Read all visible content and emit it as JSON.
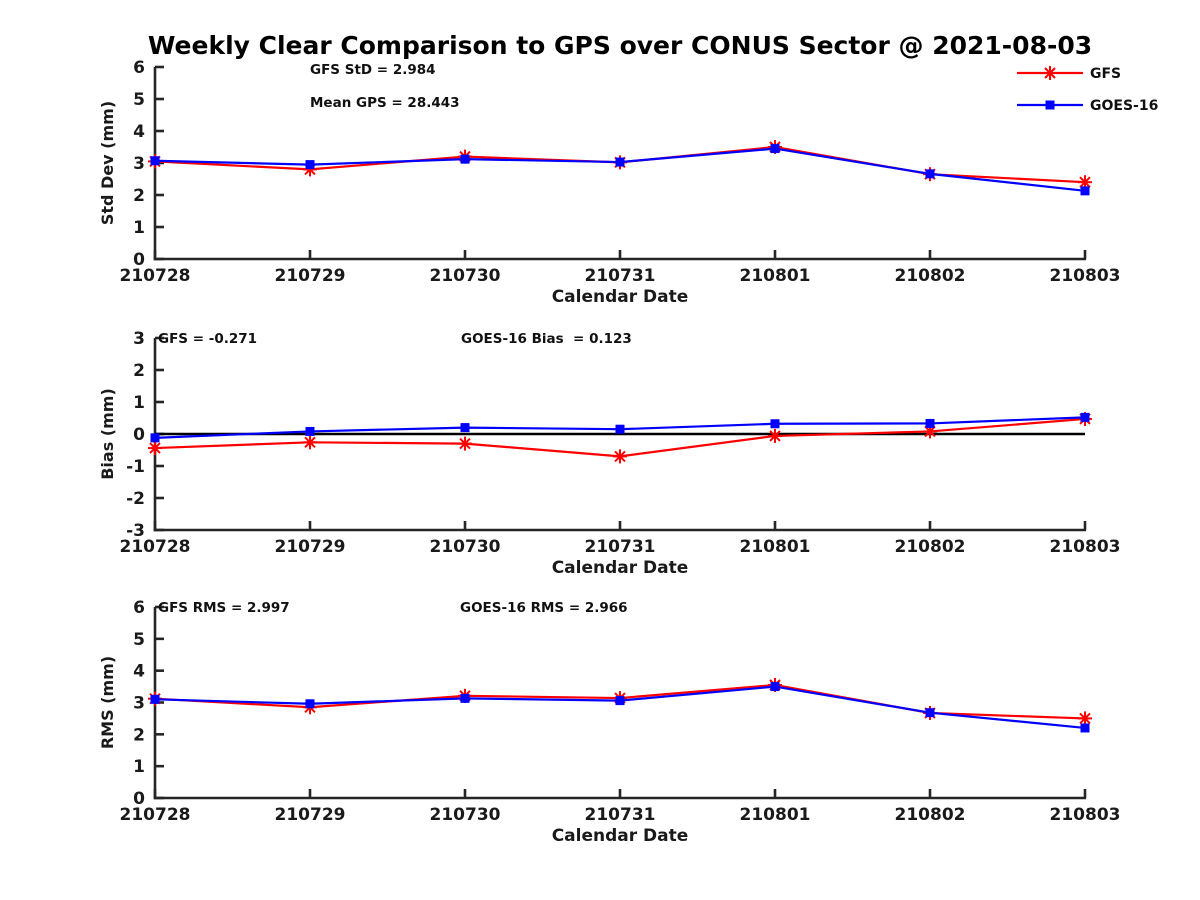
{
  "page": {
    "title": "Weekly Clear Comparison to GPS over CONUS Sector @ 2021-08-03",
    "background": "#ffffff"
  },
  "colors": {
    "gfs": "#ff0000",
    "goes16": "#0000ff",
    "axis": "#262626",
    "text": "#1a1a1a",
    "zero_line": "#000000"
  },
  "legend": {
    "position": "top-right",
    "items": [
      {
        "label": "GFS",
        "color": "#ff0000",
        "marker": "asterisk"
      },
      {
        "label": "GOES-16",
        "color": "#0000ff",
        "marker": "square"
      }
    ]
  },
  "categories": [
    "210728",
    "210729",
    "210730",
    "210731",
    "210801",
    "210802",
    "210803"
  ],
  "chart_data": [
    {
      "type": "line",
      "ylabel": "Std Dev (mm)",
      "xlabel": "Calendar Date",
      "ylim": [
        0,
        6
      ],
      "yticks": [
        0,
        1,
        2,
        3,
        4,
        5,
        6
      ],
      "grid": false,
      "zero_line": false,
      "annotations": [
        "GFS StD = 2.984",
        "Mean GPS = 28.443"
      ],
      "categories": [
        "210728",
        "210729",
        "210730",
        "210731",
        "210801",
        "210802",
        "210803"
      ],
      "series": [
        {
          "name": "GFS",
          "color": "#ff0000",
          "marker": "asterisk",
          "values": [
            3.05,
            2.8,
            3.2,
            3.02,
            3.5,
            2.65,
            2.4
          ]
        },
        {
          "name": "GOES-16",
          "color": "#0000ff",
          "marker": "square",
          "values": [
            3.07,
            2.95,
            3.12,
            3.03,
            3.45,
            2.66,
            2.13
          ]
        }
      ]
    },
    {
      "type": "line",
      "ylabel": "Bias (mm)",
      "xlabel": "Calendar Date",
      "ylim": [
        -3,
        3
      ],
      "yticks": [
        -3,
        -2,
        -1,
        0,
        1,
        2,
        3
      ],
      "grid": false,
      "zero_line": true,
      "annotations": [
        "GFS = -0.271",
        "GOES-16 Bias  = 0.123"
      ],
      "categories": [
        "210728",
        "210729",
        "210730",
        "210731",
        "210801",
        "210802",
        "210803"
      ],
      "series": [
        {
          "name": "GFS",
          "color": "#ff0000",
          "marker": "asterisk",
          "values": [
            -0.44,
            -0.26,
            -0.3,
            -0.7,
            -0.06,
            0.08,
            0.47
          ]
        },
        {
          "name": "GOES-16",
          "color": "#0000ff",
          "marker": "square",
          "values": [
            -0.12,
            0.08,
            0.2,
            0.15,
            0.32,
            0.33,
            0.52
          ]
        }
      ]
    },
    {
      "type": "line",
      "ylabel": "RMS (mm)",
      "xlabel": "Calendar Date",
      "ylim": [
        0,
        6
      ],
      "yticks": [
        0,
        1,
        2,
        3,
        4,
        5,
        6
      ],
      "grid": false,
      "zero_line": false,
      "annotations": [
        "GFS RMS = 2.997",
        "GOES-16 RMS = 2.966"
      ],
      "categories": [
        "210728",
        "210729",
        "210730",
        "210731",
        "210801",
        "210802",
        "210803"
      ],
      "series": [
        {
          "name": "GFS",
          "color": "#ff0000",
          "marker": "asterisk",
          "values": [
            3.12,
            2.85,
            3.21,
            3.14,
            3.55,
            2.67,
            2.5
          ]
        },
        {
          "name": "GOES-16",
          "color": "#0000ff",
          "marker": "square",
          "values": [
            3.1,
            2.96,
            3.13,
            3.06,
            3.5,
            2.68,
            2.2
          ]
        }
      ]
    }
  ]
}
